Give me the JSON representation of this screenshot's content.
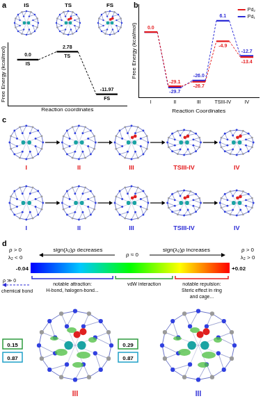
{
  "panel_labels": [
    "a",
    "b",
    "c",
    "d"
  ],
  "chart_data": [
    {
      "type": "energy_profile",
      "annotations": [
        "IS",
        "TS",
        "FS"
      ],
      "categories": [
        "IS",
        "TS",
        "FS"
      ],
      "values": [
        0.0,
        2.78,
        -11.97
      ],
      "value_labels": [
        "0.0",
        "2.78",
        "-11.97"
      ],
      "color": "#000000",
      "line_style": "dashed",
      "x_label": "Reaction coordinates",
      "y_label": "Free Energy (kcal/mol)",
      "ylim": [
        -16,
        6
      ],
      "yticks": [],
      "tick_labels": false,
      "data_labels": true
    },
    {
      "type": "energy_profile",
      "categories": [
        "I",
        "II",
        "III",
        "TSIII-IV",
        "IV"
      ],
      "series": [
        {
          "name": "Pd₂",
          "color": "#e41a1c",
          "values": [
            0.0,
            -29.1,
            -26.7,
            -4.9,
            -13.4
          ],
          "value_labels": [
            "0.0",
            "-29.1",
            "-26.7",
            "-4.9",
            "-13.4"
          ]
        },
        {
          "name": "Pd₁",
          "color": "#2b2bd6",
          "values": [
            0.0,
            -29.7,
            -26.0,
            6.1,
            -12.7
          ],
          "value_labels": [
            null,
            "-29.7",
            "-26.0",
            "6.1",
            "-12.7"
          ]
        }
      ],
      "line_style": "dashed",
      "x_label": "Reaction Coordinates",
      "y_label": "Free Energy (kcal/mol)",
      "ylim": [
        -35,
        15
      ],
      "yticks": [],
      "tick_labels": "x",
      "legend": "upper right",
      "data_labels": true
    }
  ],
  "structures": {
    "rows": [
      {
        "color": "#e41a1c",
        "labels": [
          "I",
          "II",
          "III",
          "TSIII-IV",
          "IV"
        ]
      },
      {
        "color": "#2b2bd6",
        "labels": [
          "I",
          "II",
          "III",
          "TSIII-IV",
          "IV"
        ]
      }
    ]
  },
  "nci": {
    "colorbar": {
      "range": [
        -0.04,
        0.02
      ],
      "ticks": [
        -0.04,
        {
          "value": 0.02,
          "label": "+0.02"
        }
      ],
      "colors": [
        "#0000ff",
        "#00c8ff",
        "#00ff00",
        "#ffff00",
        "#ff0000"
      ]
    },
    "header": {
      "left": [
        "ρ > 0",
        "λ₂ < 0"
      ],
      "decreases": "sign(λ₂)ρ decreases",
      "middle": "ρ ≈ 0",
      "increases": "sign(λ₂)ρ increases",
      "right": [
        "ρ > 0",
        "λ₂ > 0"
      ]
    },
    "bond": [
      "ρ ≫ 0",
      "chemical bond"
    ],
    "regions": [
      {
        "text": [
          "notable attraction:",
          "H-bond, halogen-bond..."
        ],
        "color": "#2b2bd6"
      },
      {
        "text": [
          "vdW interaction"
        ],
        "color": "#2e9b3e"
      },
      {
        "text": [
          "notable repulsion:",
          "Steric effect in ring",
          "and cage..."
        ],
        "color": "#e41a1c"
      }
    ],
    "panels": [
      {
        "label": "III",
        "color": "#e41a1c",
        "boxes": [
          {
            "value": 0.15,
            "color": "#2e9b3e"
          },
          {
            "value": 0.87,
            "color": "#1fa0c8"
          }
        ]
      },
      {
        "label": "III",
        "color": "#2b2bd6",
        "boxes": [
          {
            "value": 0.29,
            "color": "#2e9b3e"
          },
          {
            "value": 0.87,
            "color": "#1fa0c8"
          }
        ]
      }
    ]
  }
}
